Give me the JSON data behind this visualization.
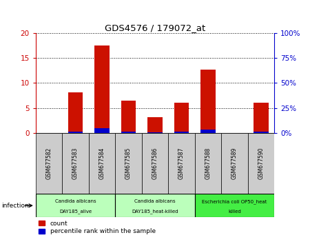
{
  "title": "GDS4576 / 179072_at",
  "samples": [
    "GSM677582",
    "GSM677583",
    "GSM677584",
    "GSM677585",
    "GSM677586",
    "GSM677587",
    "GSM677588",
    "GSM677589",
    "GSM677590"
  ],
  "counts": [
    0,
    8.1,
    17.5,
    6.5,
    3.2,
    6.0,
    12.7,
    0,
    6.0
  ],
  "percentile_ranks": [
    0,
    1.5,
    5.0,
    1.5,
    0.5,
    1.0,
    3.5,
    0,
    1.5
  ],
  "ylim_left": [
    0,
    20
  ],
  "ylim_right": [
    0,
    100
  ],
  "yticks_left": [
    0,
    5,
    10,
    15,
    20
  ],
  "yticks_right": [
    0,
    25,
    50,
    75,
    100
  ],
  "bar_color_red": "#cc1100",
  "bar_color_blue": "#0000cc",
  "bar_width": 0.55,
  "groups": [
    {
      "label": "Candida albicans\nDAY185_alive",
      "start": 0,
      "end": 3,
      "color": "#bbffbb"
    },
    {
      "label": "Candida albicans\nDAY185_heat-killed",
      "start": 3,
      "end": 6,
      "color": "#bbffbb"
    },
    {
      "label": "Escherichia coli OP50_heat\nkilled",
      "start": 6,
      "end": 9,
      "color": "#44ee44"
    }
  ],
  "infection_label": "infection",
  "legend_count": "count",
  "legend_percentile": "percentile rank within the sample",
  "tick_area_color": "#cccccc",
  "right_axis_color": "#0000cc",
  "left_axis_color": "#cc0000"
}
